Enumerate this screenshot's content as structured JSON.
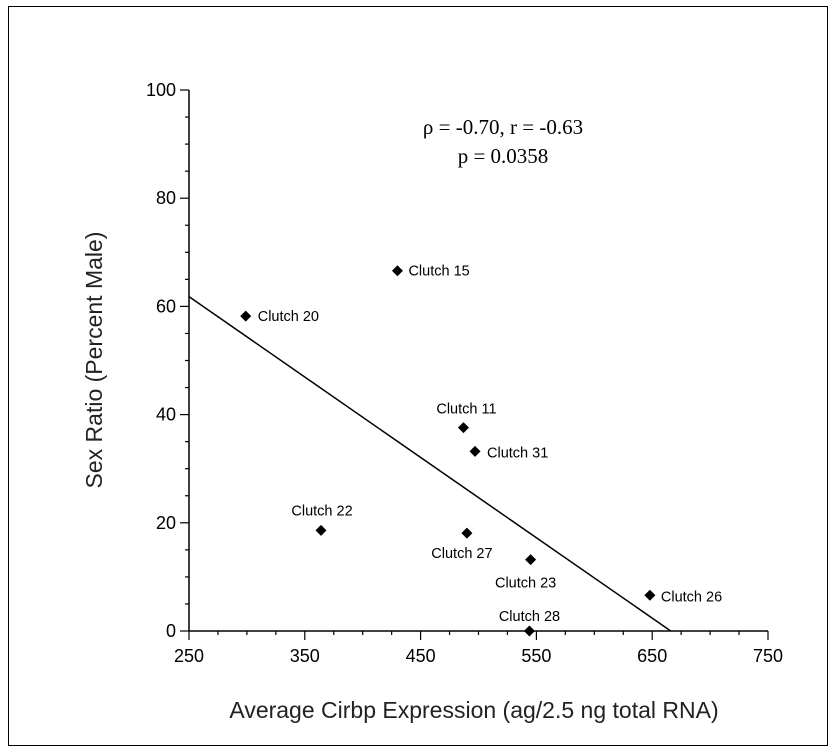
{
  "chart_data": {
    "type": "scatter",
    "xlabel": "Average Cirbp Expression (ag/2.5 ng total RNA)",
    "ylabel": "Sex Ratio (Percent Male)",
    "xlim": [
      250,
      750
    ],
    "ylim": [
      0,
      100
    ],
    "xticks": [
      "250",
      "350",
      "450",
      "550",
      "650",
      "750"
    ],
    "yticks": [
      "0",
      "20",
      "40",
      "60",
      "80",
      "100"
    ],
    "stats": {
      "line1": "ρ = -0.70, r = -0.63",
      "line2": "p = 0.0358"
    },
    "points": [
      {
        "label": "Clutch 20",
        "x": 299,
        "y": 58.2
      },
      {
        "label": "Clutch 15",
        "x": 430,
        "y": 66.6
      },
      {
        "label": "Clutch 11",
        "x": 487,
        "y": 37.6
      },
      {
        "label": "Clutch 31",
        "x": 497,
        "y": 33.2
      },
      {
        "label": "Clutch 22",
        "x": 364,
        "y": 18.6
      },
      {
        "label": "Clutch 27",
        "x": 490,
        "y": 18.1
      },
      {
        "label": "Clutch 23",
        "x": 545,
        "y": 13.2
      },
      {
        "label": "Clutch 26",
        "x": 648,
        "y": 6.6
      },
      {
        "label": "Clutch 28",
        "x": 544,
        "y": 0
      }
    ],
    "fit_line": {
      "x1": 250,
      "y1": 61.8,
      "x2": 666,
      "y2": 0
    }
  }
}
